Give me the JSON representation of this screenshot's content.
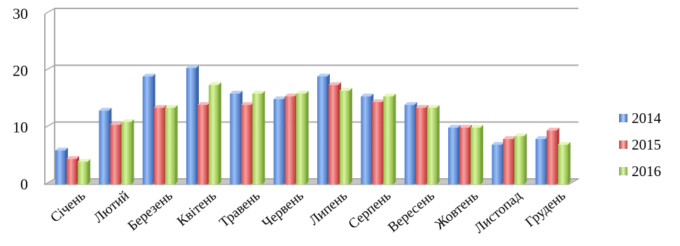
{
  "chart_data": {
    "type": "bar",
    "categories": [
      "Січень",
      "Лютий",
      "Березень",
      "Квітень",
      "Травень",
      "Червень",
      "Липень",
      "Серпень",
      "Вересень",
      "Жовтень",
      "Листопад",
      "Грудень"
    ],
    "series": [
      {
        "name": "2014",
        "color": "#6f9fea",
        "values": [
          6,
          13,
          19,
          20.5,
          16,
          15,
          19,
          15.5,
          14,
          10,
          7,
          8
        ]
      },
      {
        "name": "2015",
        "color": "#ef7373",
        "values": [
          4.5,
          10.5,
          13.5,
          14,
          14,
          15.5,
          17.5,
          14.5,
          13.5,
          10,
          8,
          9.5
        ]
      },
      {
        "name": "2016",
        "color": "#b7df6e",
        "values": [
          4,
          11,
          13.5,
          17.5,
          16,
          16,
          16.5,
          15.5,
          13.5,
          10,
          8.5,
          7
        ]
      }
    ],
    "yticks": [
      0,
      10,
      20,
      30
    ],
    "ylim": [
      0,
      30
    ],
    "grid": true,
    "legend_position": "right",
    "title": "",
    "xlabel": "",
    "ylabel": ""
  }
}
